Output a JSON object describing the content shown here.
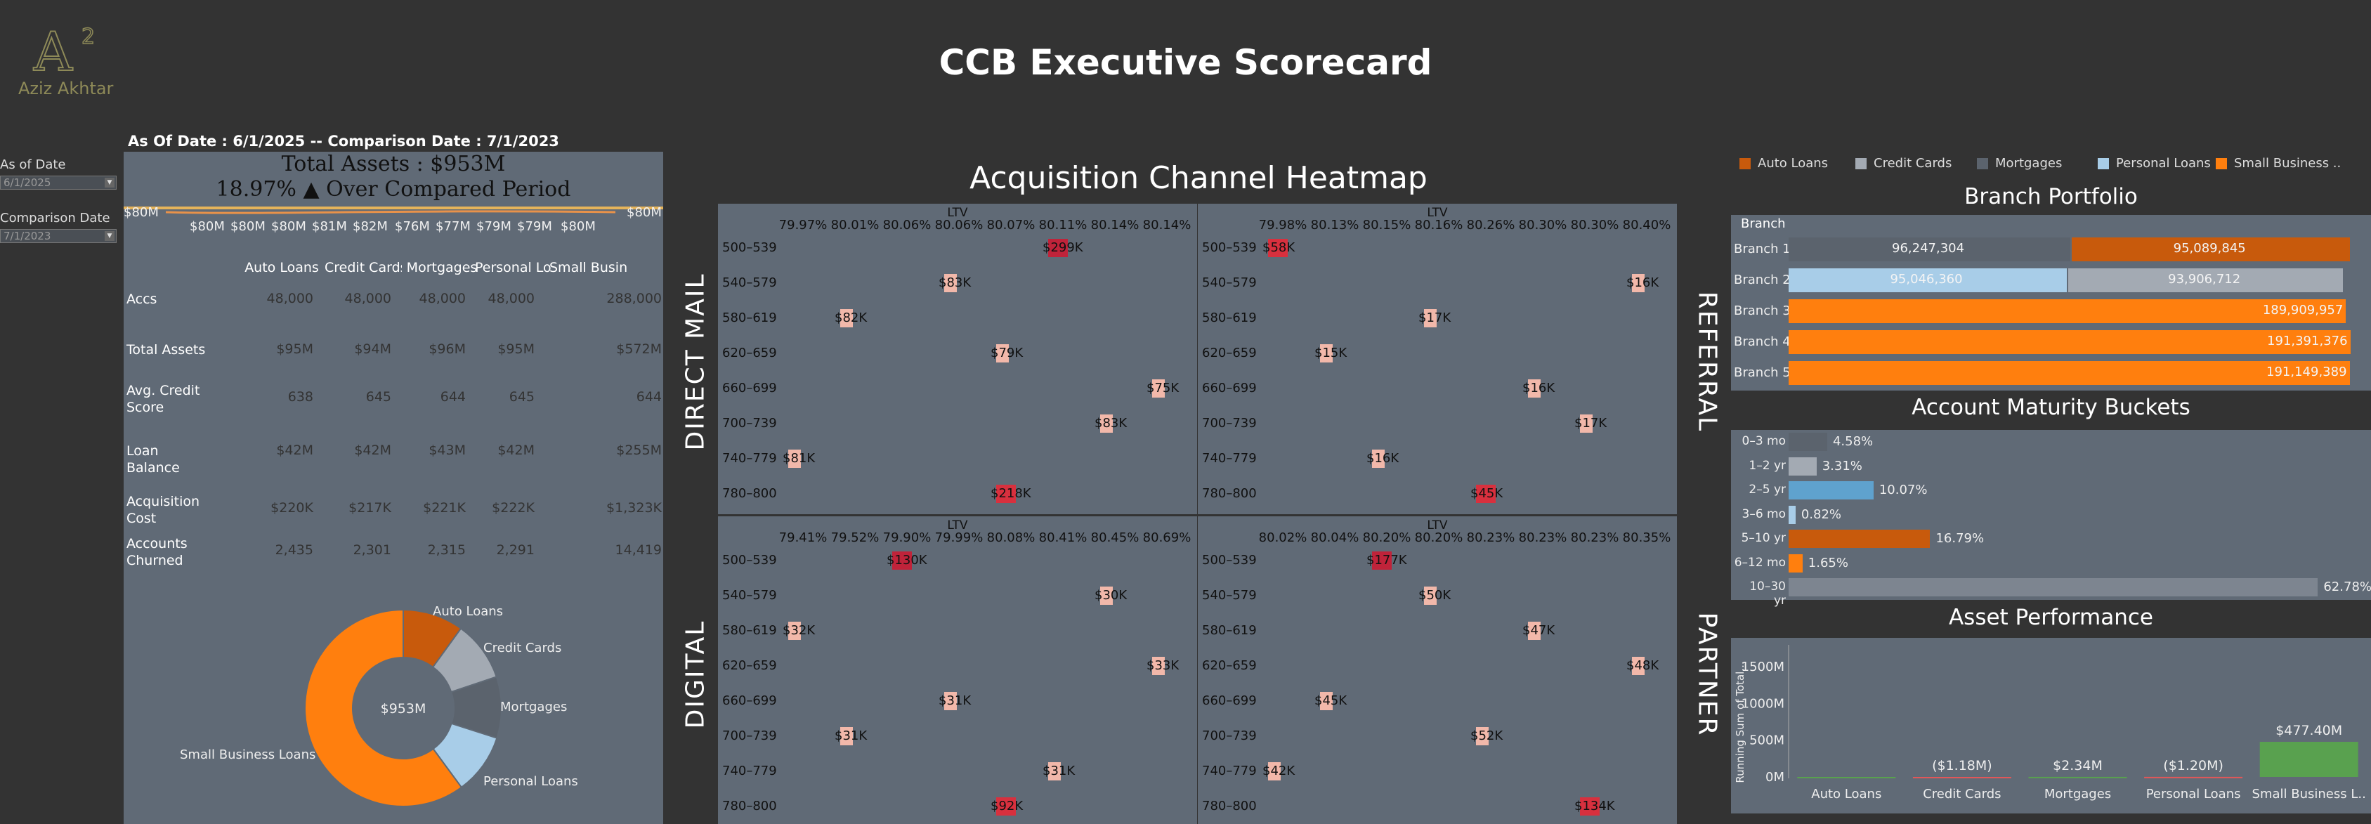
{
  "brand": {
    "logo_text": "Aziz Akhtar",
    "logo_mark": "A²"
  },
  "title": "CCB Executive Scorecard",
  "dates_text": "As Of Date : 6/1/2025  --  Comparison Date : 7/1/2023",
  "filters": {
    "as_of_label": "As of Date",
    "as_of_value": "6/1/2025",
    "comparison_label": "Comparison Date",
    "comparison_value": "7/1/2023"
  },
  "summary": {
    "total_assets": "Total Assets : $953M",
    "change": "18.97% ▲ Over Compared Period",
    "sparkline_labels": [
      "$80M",
      "$80M",
      "$80M",
      "$80M",
      "$81M",
      "$82M",
      "$76M",
      "$77M",
      "$79M",
      "$79M",
      "$80M",
      "$80M"
    ]
  },
  "table": {
    "columns": [
      "Auto Loans",
      "Credit Cards",
      "Mortgages",
      "Personal Lo..",
      "Small Busin.."
    ],
    "rows": [
      {
        "label": "Accs",
        "values": [
          "48,000",
          "48,000",
          "48,000",
          "48,000",
          "288,000"
        ]
      },
      {
        "label": "Total Assets",
        "values": [
          "$95M",
          "$94M",
          "$96M",
          "$95M",
          "$572M"
        ]
      },
      {
        "label": "Avg. Credit Score",
        "values": [
          "638",
          "645",
          "644",
          "645",
          "644"
        ]
      },
      {
        "label": "Loan Balance",
        "values": [
          "$42M",
          "$42M",
          "$43M",
          "$42M",
          "$255M"
        ]
      },
      {
        "label": "Acquisition Cost",
        "values": [
          "$220K",
          "$217K",
          "$221K",
          "$222K",
          "$1,323K"
        ]
      },
      {
        "label": "Accounts Churned",
        "values": [
          "2,435",
          "2,301",
          "2,315",
          "2,291",
          "14,419"
        ]
      }
    ]
  },
  "donut": {
    "center": "$953M",
    "slices": [
      {
        "label": "Auto Loans",
        "value": 95,
        "color": "#c85a0c"
      },
      {
        "label": "Credit Cards",
        "value": 94,
        "color": "#a3aab3"
      },
      {
        "label": "Mortgages",
        "value": 96,
        "color": "#5b636d"
      },
      {
        "label": "Personal Loans",
        "value": 95,
        "color": "#a8cde8"
      },
      {
        "label": "Small Business Loans",
        "value": 572,
        "color": "#ff7f0e"
      }
    ]
  },
  "heatmap": {
    "title": "Acquisition Channel Heatmap",
    "ltv_label": "LTV",
    "rows": [
      "500–539",
      "540–579",
      "580–619",
      "620–659",
      "660–699",
      "700–739",
      "740–779",
      "780–800"
    ],
    "channels": [
      {
        "name": "DIRECT MAIL",
        "ltv": [
          "79.97%",
          "80.01%",
          "80.06%",
          "80.06%",
          "80.07%",
          "80.11%",
          "80.14%",
          "80.14%"
        ],
        "cells": [
          {
            "col": 5,
            "text": "$299K",
            "hot": 0.9
          },
          {
            "col": 3,
            "text": "$83K",
            "hot": 0.3
          },
          {
            "col": 1,
            "text": "$82K",
            "hot": 0.3
          },
          {
            "col": 4,
            "text": "$79K",
            "hot": 0.3
          },
          {
            "col": 7,
            "text": "$75K",
            "hot": 0.3
          },
          {
            "col": 6,
            "text": "$83K",
            "hot": 0.3
          },
          {
            "col": 0,
            "text": "$81K",
            "hot": 0.3
          },
          {
            "col": 4,
            "text": "$218K",
            "hot": 0.8
          }
        ]
      },
      {
        "name": "REFERRAL",
        "ltv": [
          "79.98%",
          "80.13%",
          "80.15%",
          "80.16%",
          "80.26%",
          "80.30%",
          "80.30%",
          "80.40%"
        ],
        "cells": [
          {
            "col": 0,
            "text": "$58K",
            "hot": 0.8
          },
          {
            "col": 7,
            "text": "$16K",
            "hot": 0.3
          },
          {
            "col": 3,
            "text": "$17K",
            "hot": 0.3
          },
          {
            "col": 1,
            "text": "$15K",
            "hot": 0.3
          },
          {
            "col": 5,
            "text": "$16K",
            "hot": 0.3
          },
          {
            "col": 6,
            "text": "$17K",
            "hot": 0.3
          },
          {
            "col": 2,
            "text": "$16K",
            "hot": 0.3
          },
          {
            "col": 4,
            "text": "$45K",
            "hot": 0.8
          }
        ]
      },
      {
        "name": "DIGITAL",
        "ltv": [
          "79.41%",
          "79.52%",
          "79.90%",
          "79.99%",
          "80.08%",
          "80.41%",
          "80.45%",
          "80.69%"
        ],
        "cells": [
          {
            "col": 2,
            "text": "$130K",
            "hot": 0.9
          },
          {
            "col": 6,
            "text": "$30K",
            "hot": 0.3
          },
          {
            "col": 0,
            "text": "$32K",
            "hot": 0.3
          },
          {
            "col": 7,
            "text": "$33K",
            "hot": 0.3
          },
          {
            "col": 3,
            "text": "$31K",
            "hot": 0.3
          },
          {
            "col": 1,
            "text": "$31K",
            "hot": 0.3
          },
          {
            "col": 5,
            "text": "$31K",
            "hot": 0.3
          },
          {
            "col": 4,
            "text": "$92K",
            "hot": 0.8
          }
        ]
      },
      {
        "name": "PARTNER",
        "ltv": [
          "80.02%",
          "80.04%",
          "80.20%",
          "80.20%",
          "80.23%",
          "80.23%",
          "80.23%",
          "80.35%"
        ],
        "cells": [
          {
            "col": 2,
            "text": "$177K",
            "hot": 0.9
          },
          {
            "col": 3,
            "text": "$50K",
            "hot": 0.3
          },
          {
            "col": 5,
            "text": "$47K",
            "hot": 0.3
          },
          {
            "col": 7,
            "text": "$48K",
            "hot": 0.3
          },
          {
            "col": 1,
            "text": "$45K",
            "hot": 0.3
          },
          {
            "col": 4,
            "text": "$52K",
            "hot": 0.3
          },
          {
            "col": 0,
            "text": "$42K",
            "hot": 0.3
          },
          {
            "col": 6,
            "text": "$134K",
            "hot": 0.8
          }
        ]
      }
    ]
  },
  "legend": [
    {
      "label": "Auto Loans",
      "color": "#c85a0c"
    },
    {
      "label": "Credit Cards",
      "color": "#a3aab3"
    },
    {
      "label": "Mortgages",
      "color": "#5b636d"
    },
    {
      "label": "Personal Loans",
      "color": "#a8cde8"
    },
    {
      "label": "Small Business ..",
      "color": "#ff7f0e"
    }
  ],
  "branch_portfolio": {
    "title": "Branch Portfolio",
    "header": "Branch",
    "rows": [
      {
        "name": "Branch 1",
        "segments": [
          {
            "value": 96247304,
            "text": "96,247,304",
            "color": "#5b636d"
          },
          {
            "value": 95089845,
            "text": "95,089,845",
            "color": "#c85a0c"
          }
        ]
      },
      {
        "name": "Branch 2",
        "segments": [
          {
            "value": 95046360,
            "text": "95,046,360",
            "color": "#a8cde8"
          },
          {
            "value": 93906712,
            "text": "93,906,712",
            "color": "#a3aab3"
          }
        ]
      },
      {
        "name": "Branch 3",
        "segments": [
          {
            "value": 189909957,
            "text": "189,909,957",
            "color": "#ff7f0e"
          }
        ]
      },
      {
        "name": "Branch 4",
        "segments": [
          {
            "value": 191391376,
            "text": "191,391,376",
            "color": "#ff7f0e"
          }
        ]
      },
      {
        "name": "Branch 5",
        "segments": [
          {
            "value": 191149389,
            "text": "191,149,389",
            "color": "#ff7f0e"
          }
        ]
      }
    ],
    "max": 191500000
  },
  "maturity": {
    "title": "Account Maturity Buckets",
    "rows": [
      {
        "label": "0–3 mo",
        "pct": 4.58,
        "text": "4.58%",
        "color": "#5b636d"
      },
      {
        "label": "1–2 yr",
        "pct": 3.31,
        "text": "3.31%",
        "color": "#a3aab3"
      },
      {
        "label": "2–5 yr",
        "pct": 10.07,
        "text": "10.07%",
        "color": "#5fa2ce"
      },
      {
        "label": "3–6 mo",
        "pct": 0.82,
        "text": "0.82%",
        "color": "#a8cde8"
      },
      {
        "label": "5–10 yr",
        "pct": 16.79,
        "text": "16.79%",
        "color": "#c85a0c"
      },
      {
        "label": "6–12 mo",
        "pct": 1.65,
        "text": "1.65%",
        "color": "#ff7f0e"
      },
      {
        "label": "10–30 yr",
        "pct": 62.78,
        "text": "62.78%",
        "color": "#7d8590"
      }
    ]
  },
  "chart_data": {
    "type": "bar",
    "title": "Asset Performance",
    "ylabel": "Running Sum of Total...",
    "categories": [
      "Auto Loans",
      "Credit Cards",
      "Mortgages",
      "Personal Loans",
      "Small Business L.."
    ],
    "labels": [
      "",
      "($1.18M)",
      "$2.34M",
      "($1.20M)",
      "$477.40M"
    ],
    "values": [
      0,
      -1.18,
      2.34,
      -1.2,
      477.4
    ],
    "yticks": [
      "1500M",
      "1000M",
      "500M",
      "0M"
    ],
    "ylim": [
      0,
      1700
    ]
  }
}
